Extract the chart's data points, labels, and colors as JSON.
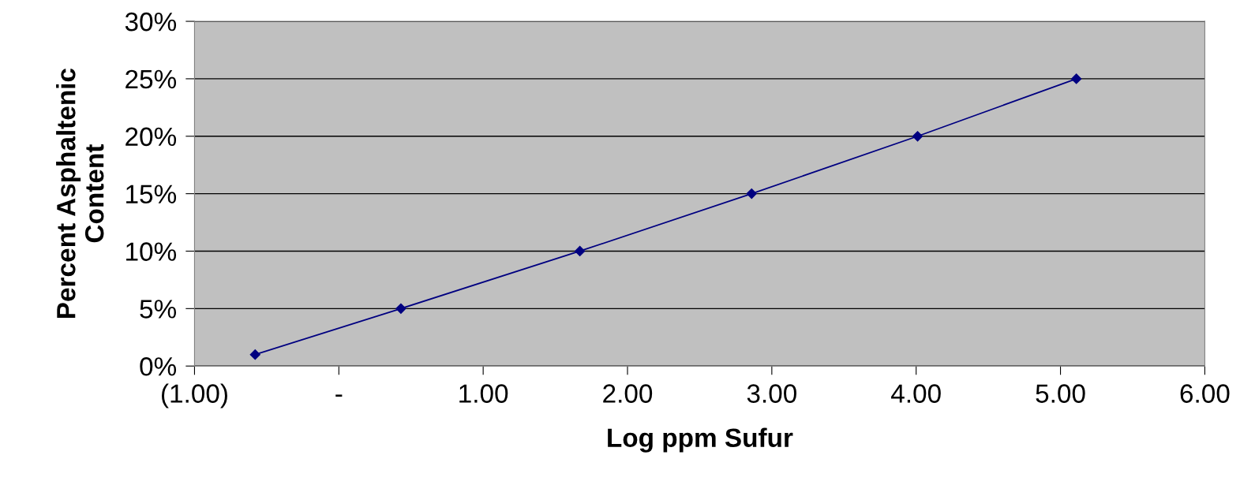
{
  "chart_data": {
    "type": "line",
    "xlabel": "Log ppm Sufur",
    "ylabel": "Percent Asphaltenic\nContent",
    "x": [
      -0.58,
      0.43,
      1.67,
      2.86,
      4.01,
      5.11
    ],
    "series": [
      {
        "color": "#000080",
        "values": [
          1,
          5,
          10,
          15,
          20,
          25
        ]
      }
    ],
    "xlim": [
      -1,
      6
    ],
    "xticks": [
      {
        "value": -1,
        "label": "(1.00)"
      },
      {
        "value": 0,
        "label": "-"
      },
      {
        "value": 1,
        "label": "1.00"
      },
      {
        "value": 2,
        "label": "2.00"
      },
      {
        "value": 3,
        "label": "3.00"
      },
      {
        "value": 4,
        "label": "4.00"
      },
      {
        "value": 5,
        "label": "5.00"
      },
      {
        "value": 6,
        "label": "6.00"
      }
    ],
    "ylim": [
      0,
      30
    ],
    "yticks": [
      {
        "value": 0,
        "label": "0%"
      },
      {
        "value": 5,
        "label": "5%"
      },
      {
        "value": 10,
        "label": "10%"
      },
      {
        "value": 15,
        "label": "15%"
      },
      {
        "value": 20,
        "label": "20%"
      },
      {
        "value": 25,
        "label": "25%"
      },
      {
        "value": 30,
        "label": "30%"
      }
    ],
    "grid": "y",
    "marker": "diamond",
    "line_style": "solid",
    "legend": false
  }
}
